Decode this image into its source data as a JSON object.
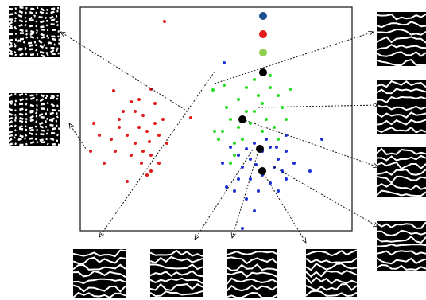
{
  "chart_data": {
    "type": "scatter",
    "xlim": [
      0,
      342
    ],
    "ylim": [
      0,
      281
    ],
    "series": [
      {
        "color": "#e31a1c",
        "marker_size": "small",
        "x": [
          106,
          139,
          13,
          30,
          59,
          42,
          49,
          89,
          64,
          69,
          79,
          74,
          84,
          94,
          99,
          59,
          69,
          79,
          89,
          64,
          49,
          39,
          17,
          24,
          89,
          84,
          99,
          77,
          54,
          74,
          94,
          104,
          109,
          44,
          87
        ],
        "values": [
          263,
          142,
          100,
          85,
          62,
          176,
          140,
          178,
          162,
          150,
          145,
          130,
          125,
          135,
          120,
          120,
          110,
          100,
          95,
          95,
          130,
          115,
          135,
          120,
          75,
          70,
          85,
          85,
          150,
          165,
          160,
          140,
          110,
          100,
          112
        ]
      },
      {
        "color": "#22dd22",
        "marker_size": "small",
        "x": [
          181,
          167,
          199,
          209,
          224,
          219,
          229,
          239,
          249,
          254,
          264,
          234,
          214,
          199,
          189,
          179,
          174,
          169,
          194,
          204,
          219,
          244,
          259,
          184,
          209,
          229,
          249,
          194,
          189,
          239
        ],
        "values": [
          183,
          177,
          165,
          180,
          170,
          150,
          160,
          180,
          170,
          155,
          178,
          140,
          135,
          130,
          140,
          125,
          115,
          125,
          110,
          115,
          190,
          130,
          140,
          155,
          150,
          125,
          115,
          95,
          85,
          195
        ]
      },
      {
        "color": "#1a2fd6",
        "marker_size": "small",
        "x": [
          181,
          219,
          229,
          239,
          249,
          259,
          214,
          204,
          199,
          194,
          184,
          209,
          219,
          204,
          239,
          254,
          269,
          289,
          304,
          244,
          229,
          224,
          214,
          249,
          259,
          199,
          189,
          234,
          259,
          247,
          209,
          221,
          179
        ],
        "values": [
          211,
          110,
          100,
          105,
          90,
          100,
          90,
          80,
          65,
          50,
          55,
          40,
          25,
          3,
          60,
          75,
          85,
          75,
          115,
          80,
          70,
          50,
          65,
          50,
          65,
          95,
          105,
          115,
          120,
          105,
          103,
          83,
          85
        ]
      },
      {
        "color": "#000000",
        "marker_size": "large",
        "x": [
          230,
          204,
          229,
          226
        ],
        "values": [
          199,
          140,
          75,
          103
        ]
      },
      {
        "color": "#1f4e8c",
        "marker_size": "large",
        "x": [
          230
        ],
        "values": [
          270
        ]
      },
      {
        "color": "#e31a1c",
        "marker_size": "large",
        "x": [
          230
        ],
        "values": [
          247
        ]
      },
      {
        "color": "#8fd14f",
        "marker_size": "large",
        "x": [
          230
        ],
        "values": [
          224
        ]
      }
    ]
  }
}
